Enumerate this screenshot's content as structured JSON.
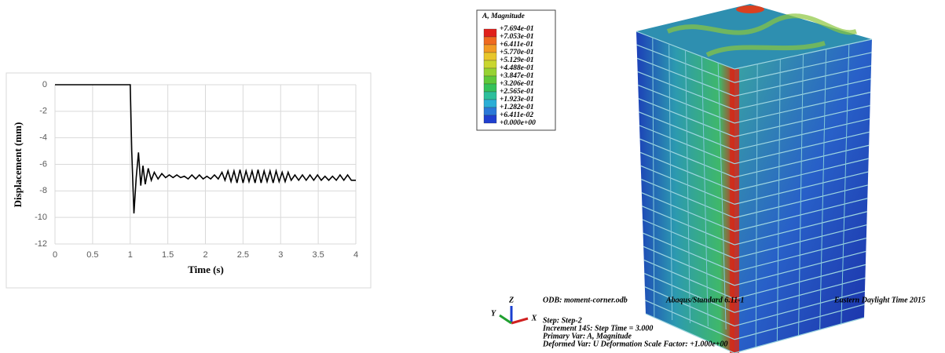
{
  "chart_data": {
    "type": "line",
    "x_label": "Time (s)",
    "y_label": "Displacement (mm)",
    "x": [
      0,
      1.0,
      1.02,
      1.05,
      1.08,
      1.11,
      1.14,
      1.17,
      1.2,
      1.24,
      1.28,
      1.32,
      1.37,
      1.42,
      1.47,
      1.52,
      1.57,
      1.62,
      1.67,
      1.72,
      1.77,
      1.82,
      1.87,
      1.92,
      1.97,
      2.02,
      2.07,
      2.12,
      2.17,
      2.22,
      2.26,
      2.3,
      2.34,
      2.38,
      2.42,
      2.46,
      2.5,
      2.54,
      2.58,
      2.62,
      2.66,
      2.7,
      2.74,
      2.78,
      2.82,
      2.86,
      2.9,
      2.94,
      2.98,
      3.02,
      3.06,
      3.1,
      3.14,
      3.19,
      3.24,
      3.29,
      3.34,
      3.39,
      3.44,
      3.49,
      3.54,
      3.59,
      3.64,
      3.69,
      3.74,
      3.79,
      3.84,
      3.89,
      3.94,
      4.0
    ],
    "values": [
      0,
      0,
      -5,
      -9.7,
      -7,
      -5.1,
      -7.6,
      -6.1,
      -7.5,
      -6.3,
      -7.2,
      -6.6,
      -7.1,
      -6.7,
      -7.0,
      -6.8,
      -7.0,
      -6.8,
      -7.0,
      -6.9,
      -7.1,
      -6.8,
      -7.1,
      -6.8,
      -7.1,
      -6.9,
      -7.1,
      -6.8,
      -7.1,
      -6.6,
      -7.2,
      -6.5,
      -7.3,
      -6.5,
      -7.4,
      -6.4,
      -7.4,
      -6.5,
      -7.3,
      -6.5,
      -7.4,
      -6.4,
      -7.4,
      -6.5,
      -7.3,
      -6.5,
      -7.4,
      -6.5,
      -7.3,
      -6.6,
      -7.3,
      -6.6,
      -7.2,
      -6.8,
      -7.2,
      -6.8,
      -7.2,
      -6.8,
      -7.2,
      -6.8,
      -7.2,
      -6.9,
      -7.2,
      -6.9,
      -7.2,
      -6.8,
      -7.2,
      -6.8,
      -7.2,
      -7.2
    ],
    "color": "#000000",
    "xlim": [
      0,
      4
    ],
    "xticks": [
      0,
      0.5,
      1,
      1.5,
      2,
      2.5,
      3,
      3.5,
      4
    ],
    "ylim": [
      -12,
      0
    ],
    "yticks": [
      0,
      -2,
      -4,
      -6,
      -8,
      -10,
      -12
    ],
    "grid": true
  },
  "contour_plot": {
    "legend": {
      "title": "A, Magnitude",
      "labels": [
        "+7.694e-01",
        "+7.053e-01",
        "+6.411e-01",
        "+5.770e-01",
        "+5.129e-01",
        "+4.488e-01",
        "+3.847e-01",
        "+3.206e-01",
        "+2.565e-01",
        "+1.923e-01",
        "+1.282e-01",
        "+6.411e-02",
        "+0.000e+00"
      ],
      "colors": [
        "#e0201a",
        "#ef6a1e",
        "#f29a22",
        "#e8c62a",
        "#c9d630",
        "#97d232",
        "#5fc83a",
        "#34c25a",
        "#2cbf9c",
        "#2aaed6",
        "#2a78d8",
        "#1f3fcf"
      ]
    },
    "triad": [
      "Z",
      "Y",
      "X"
    ],
    "info": [
      "ODB: moment-corner.odb",
      "Abaqus/Standard 6.11-1",
      "Eastern Daylight Time 2015",
      "Step: Step-2",
      "Increment    145: Step Time =    3.000",
      "Primary Var: A, Magnitude",
      "Deformed Var: U   Deformation Scale Factor: +1.000e+00"
    ]
  }
}
